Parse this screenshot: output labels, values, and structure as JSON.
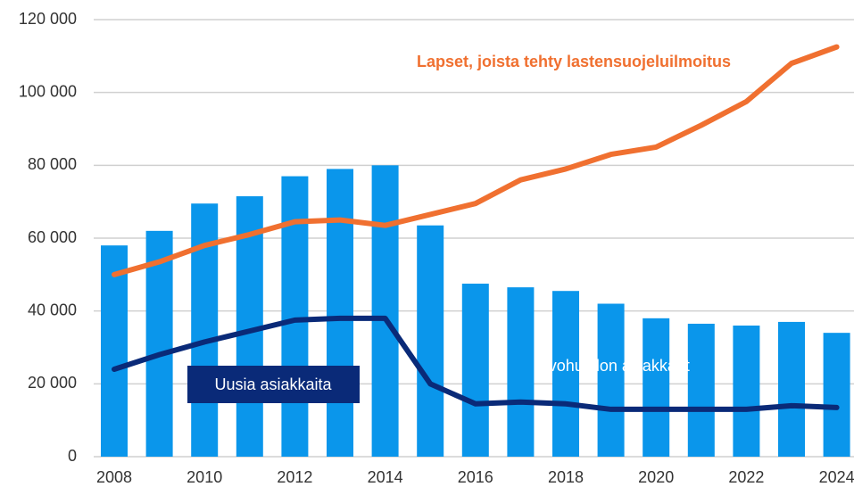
{
  "chart_data": {
    "type": "bar",
    "categories": [
      "2008",
      null,
      "2010",
      null,
      "2012",
      null,
      "2014",
      null,
      "2016",
      null,
      "2018",
      null,
      "2020",
      null,
      "2022",
      null,
      "2024"
    ],
    "series": [
      {
        "name": "Avohuollon asiakkaat",
        "type": "bar",
        "color": "#0a96eb",
        "values": [
          58000,
          62000,
          69500,
          71500,
          77000,
          79000,
          80000,
          63500,
          47500,
          46500,
          45500,
          42000,
          38000,
          36500,
          36000,
          37000,
          34000
        ]
      },
      {
        "name": "Lapset, joista tehty lastensuojeluilmoitus",
        "type": "line",
        "color": "#f07030",
        "values": [
          50000,
          53500,
          58000,
          61000,
          64500,
          65000,
          63500,
          66500,
          69500,
          76000,
          79000,
          83000,
          85000,
          91000,
          97500,
          108000,
          112500
        ]
      },
      {
        "name": "Uusia asiakkaita",
        "type": "line",
        "color": "#0a2a78",
        "values": [
          24000,
          28000,
          31500,
          34500,
          37500,
          38000,
          38000,
          20000,
          14500,
          15000,
          14500,
          13000,
          13000,
          13000,
          13000,
          14000,
          13500
        ]
      }
    ],
    "ylim": [
      0,
      120000
    ],
    "yticks": [
      0,
      {
        "value": 20000,
        "label": "20 000"
      },
      {
        "value": 40000,
        "label": "40 000"
      },
      {
        "value": 60000,
        "label": "60 000"
      },
      {
        "value": 80000,
        "label": "80 000"
      },
      {
        "value": 100000,
        "label": "100 000"
      },
      {
        "value": 120000,
        "label": "120 000"
      }
    ],
    "grid": true
  }
}
